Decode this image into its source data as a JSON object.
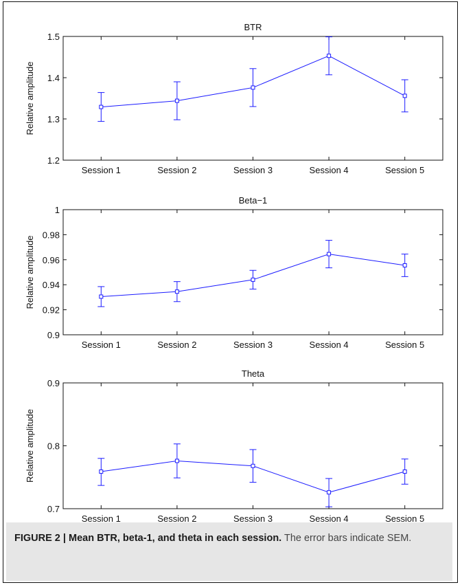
{
  "chart_data": [
    {
      "type": "line",
      "title": "BTR",
      "ylabel": "Relative amplitude",
      "xlabel": "",
      "categories": [
        "Session 1",
        "Session 2",
        "Session 3",
        "Session 4",
        "Session 5"
      ],
      "values": [
        1.329,
        1.344,
        1.376,
        1.453,
        1.356
      ],
      "error_low": [
        1.294,
        1.298,
        1.33,
        1.407,
        1.317
      ],
      "error_high": [
        1.364,
        1.39,
        1.422,
        1.499,
        1.395
      ],
      "ylim": [
        1.2,
        1.5
      ],
      "yticks": [
        "1.2",
        "1.3",
        "1.4",
        "1.5"
      ],
      "grid": false,
      "color": "#1a1aff"
    },
    {
      "type": "line",
      "title": "Beta−1",
      "ylabel": "Relative amplitude",
      "xlabel": "",
      "categories": [
        "Session 1",
        "Session 2",
        "Session 3",
        "Session 4",
        "Session 5"
      ],
      "values": [
        0.9305,
        0.9345,
        0.944,
        0.9645,
        0.9555
      ],
      "error_low": [
        0.9225,
        0.9265,
        0.9365,
        0.9535,
        0.9465
      ],
      "error_high": [
        0.9385,
        0.9425,
        0.9515,
        0.9755,
        0.9645
      ],
      "ylim": [
        0.9,
        1.0
      ],
      "yticks": [
        "0.9",
        "0.92",
        "0.94",
        "0.96",
        "0.98",
        "1"
      ],
      "grid": false,
      "color": "#1a1aff"
    },
    {
      "type": "line",
      "title": "Theta",
      "ylabel": "Relative amplitude",
      "xlabel": "",
      "categories": [
        "Session 1",
        "Session 2",
        "Session 3",
        "Session 4",
        "Session 5"
      ],
      "values": [
        0.759,
        0.776,
        0.768,
        0.726,
        0.759
      ],
      "error_low": [
        0.737,
        0.749,
        0.742,
        0.703,
        0.739
      ],
      "error_high": [
        0.78,
        0.803,
        0.794,
        0.748,
        0.779
      ],
      "ylim": [
        0.7,
        0.9
      ],
      "yticks": [
        "0.7",
        "0.8",
        "0.9"
      ],
      "grid": false,
      "color": "#1a1aff"
    }
  ],
  "caption": {
    "label": "FIGURE 2 | Mean BTR, beta-1, and theta in each session.",
    "text": " The error bars indicate SEM."
  }
}
